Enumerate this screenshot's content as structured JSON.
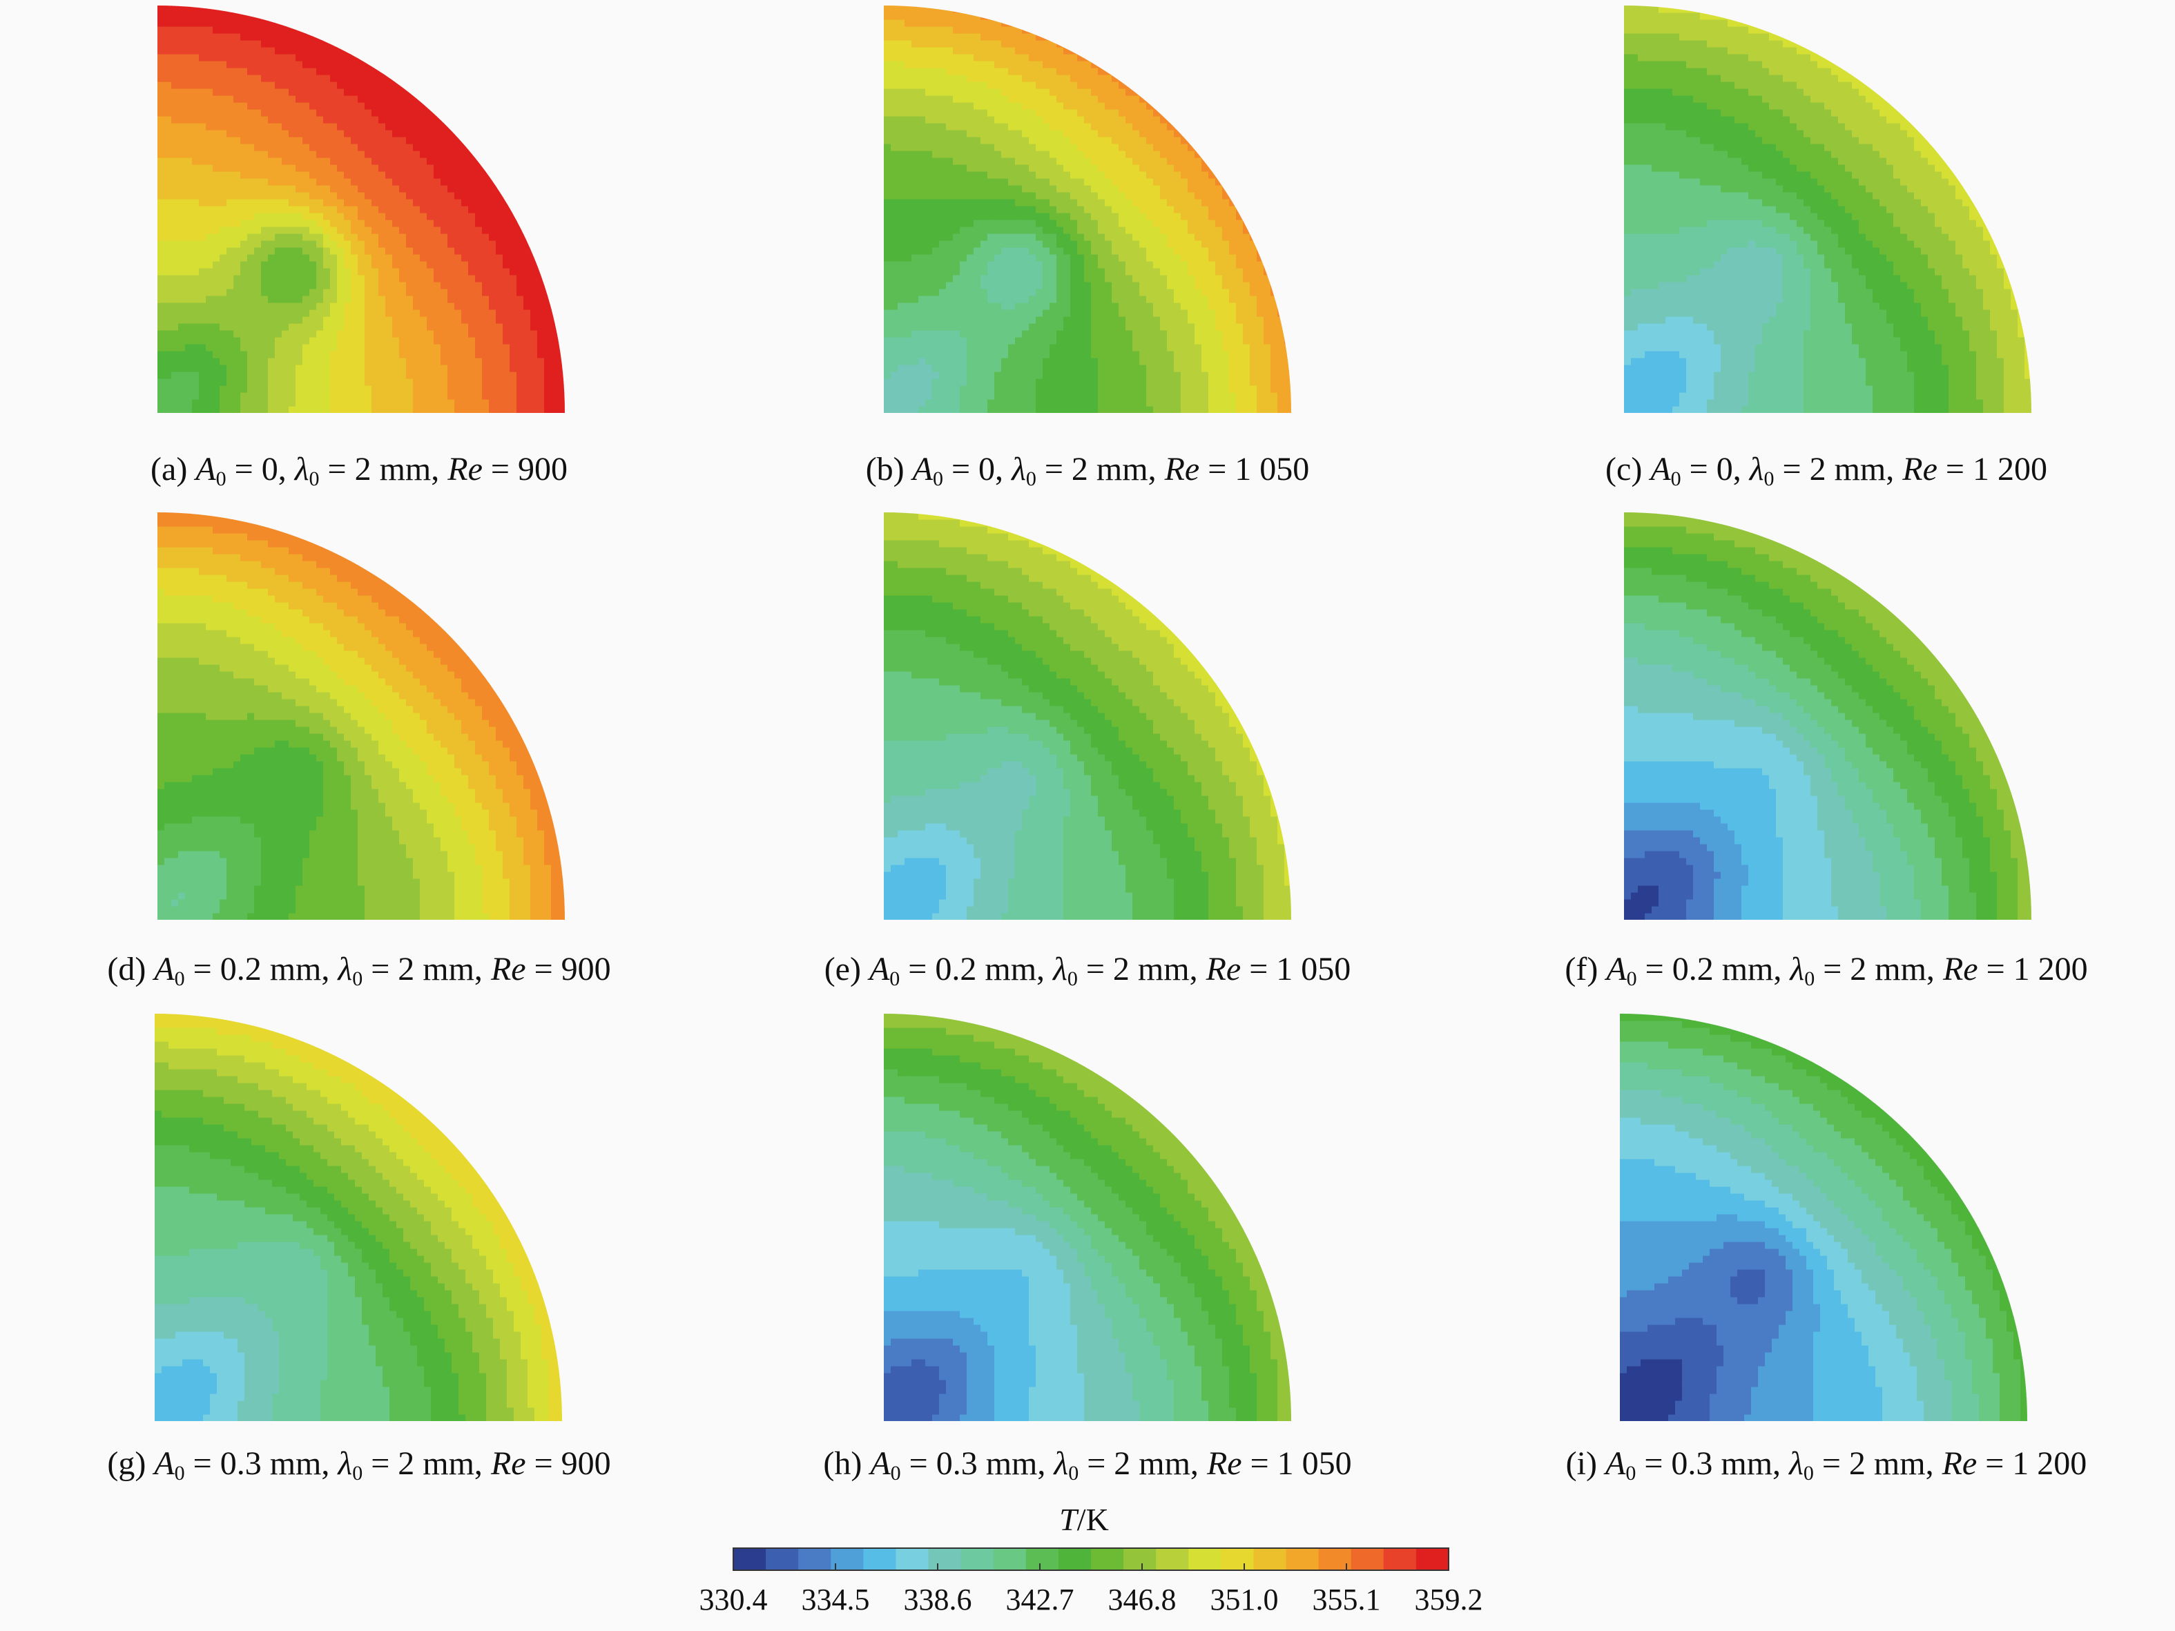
{
  "chart_data": {
    "type": "heatmap",
    "colorbar": {
      "label_var": "T",
      "label_unit": "/K",
      "ticks": [
        "330.4",
        "334.5",
        "338.6",
        "342.7",
        "346.8",
        "351.0",
        "355.1",
        "359.2"
      ],
      "range": [
        330.4,
        359.2
      ],
      "colors": [
        "#2b3d8f",
        "#3d5fb0",
        "#4a7cc6",
        "#4f9fd8",
        "#55bde6",
        "#78cfe0",
        "#73c6b8",
        "#6dc9a0",
        "#68c884",
        "#5dbd55",
        "#4fb43a",
        "#6dbb35",
        "#94c43a",
        "#b8d03a",
        "#d6df33",
        "#e6d82e",
        "#ecc02c",
        "#f2a62a",
        "#f28a2a",
        "#ef6a2a",
        "#e8432a",
        "#e0201f"
      ]
    },
    "panels": [
      {
        "tag": "(a)",
        "A0": "0",
        "lambda0": "2 mm",
        "Re": "900",
        "levels": {
          "corner": 343.0,
          "center": 345.0,
          "far": 359.0,
          "top": 359.0,
          "right": 359.0
        }
      },
      {
        "tag": "(b)",
        "A0": "0",
        "lambda0": "2 mm",
        "Re": "1 050",
        "levels": {
          "corner": 339.0,
          "center": 340.0,
          "far": 350.0,
          "top": 354.0,
          "right": 354.0
        }
      },
      {
        "tag": "(c)",
        "A0": "0",
        "lambda0": "2 mm",
        "Re": "1 200",
        "levels": {
          "corner": 336.0,
          "center": 339.0,
          "far": 346.5,
          "top": 349.0,
          "right": 349.0
        }
      },
      {
        "tag": "(d)",
        "A0": "0.2 mm",
        "lambda0": "2 mm",
        "Re": "900",
        "levels": {
          "corner": 341.0,
          "center": 344.0,
          "far": 351.0,
          "top": 355.0,
          "right": 355.0
        }
      },
      {
        "tag": "(e)",
        "A0": "0.2 mm",
        "lambda0": "2 mm",
        "Re": "1 050",
        "levels": {
          "corner": 336.0,
          "center": 339.5,
          "far": 346.5,
          "top": 349.0,
          "right": 349.0
        }
      },
      {
        "tag": "(f)",
        "A0": "0.2 mm",
        "lambda0": "2 mm",
        "Re": "1 200",
        "levels": {
          "corner": 331.5,
          "center": 337.0,
          "far": 344.5,
          "top": 346.5,
          "right": 347.0
        }
      },
      {
        "tag": "(g)",
        "A0": "0.3 mm",
        "lambda0": "2 mm",
        "Re": "900",
        "levels": {
          "corner": 336.0,
          "center": 340.0,
          "far": 347.0,
          "top": 351.0,
          "right": 350.0
        }
      },
      {
        "tag": "(h)",
        "A0": "0.3 mm",
        "lambda0": "2 mm",
        "Re": "1 050",
        "levels": {
          "corner": 332.0,
          "center": 337.0,
          "far": 344.5,
          "top": 347.0,
          "right": 347.0
        }
      },
      {
        "tag": "(i)",
        "A0": "0.3 mm",
        "lambda0": "2 mm",
        "Re": "1 200",
        "levels": {
          "corner": 330.8,
          "center": 333.0,
          "far": 340.5,
          "top": 343.5,
          "right": 344.0
        }
      }
    ]
  }
}
